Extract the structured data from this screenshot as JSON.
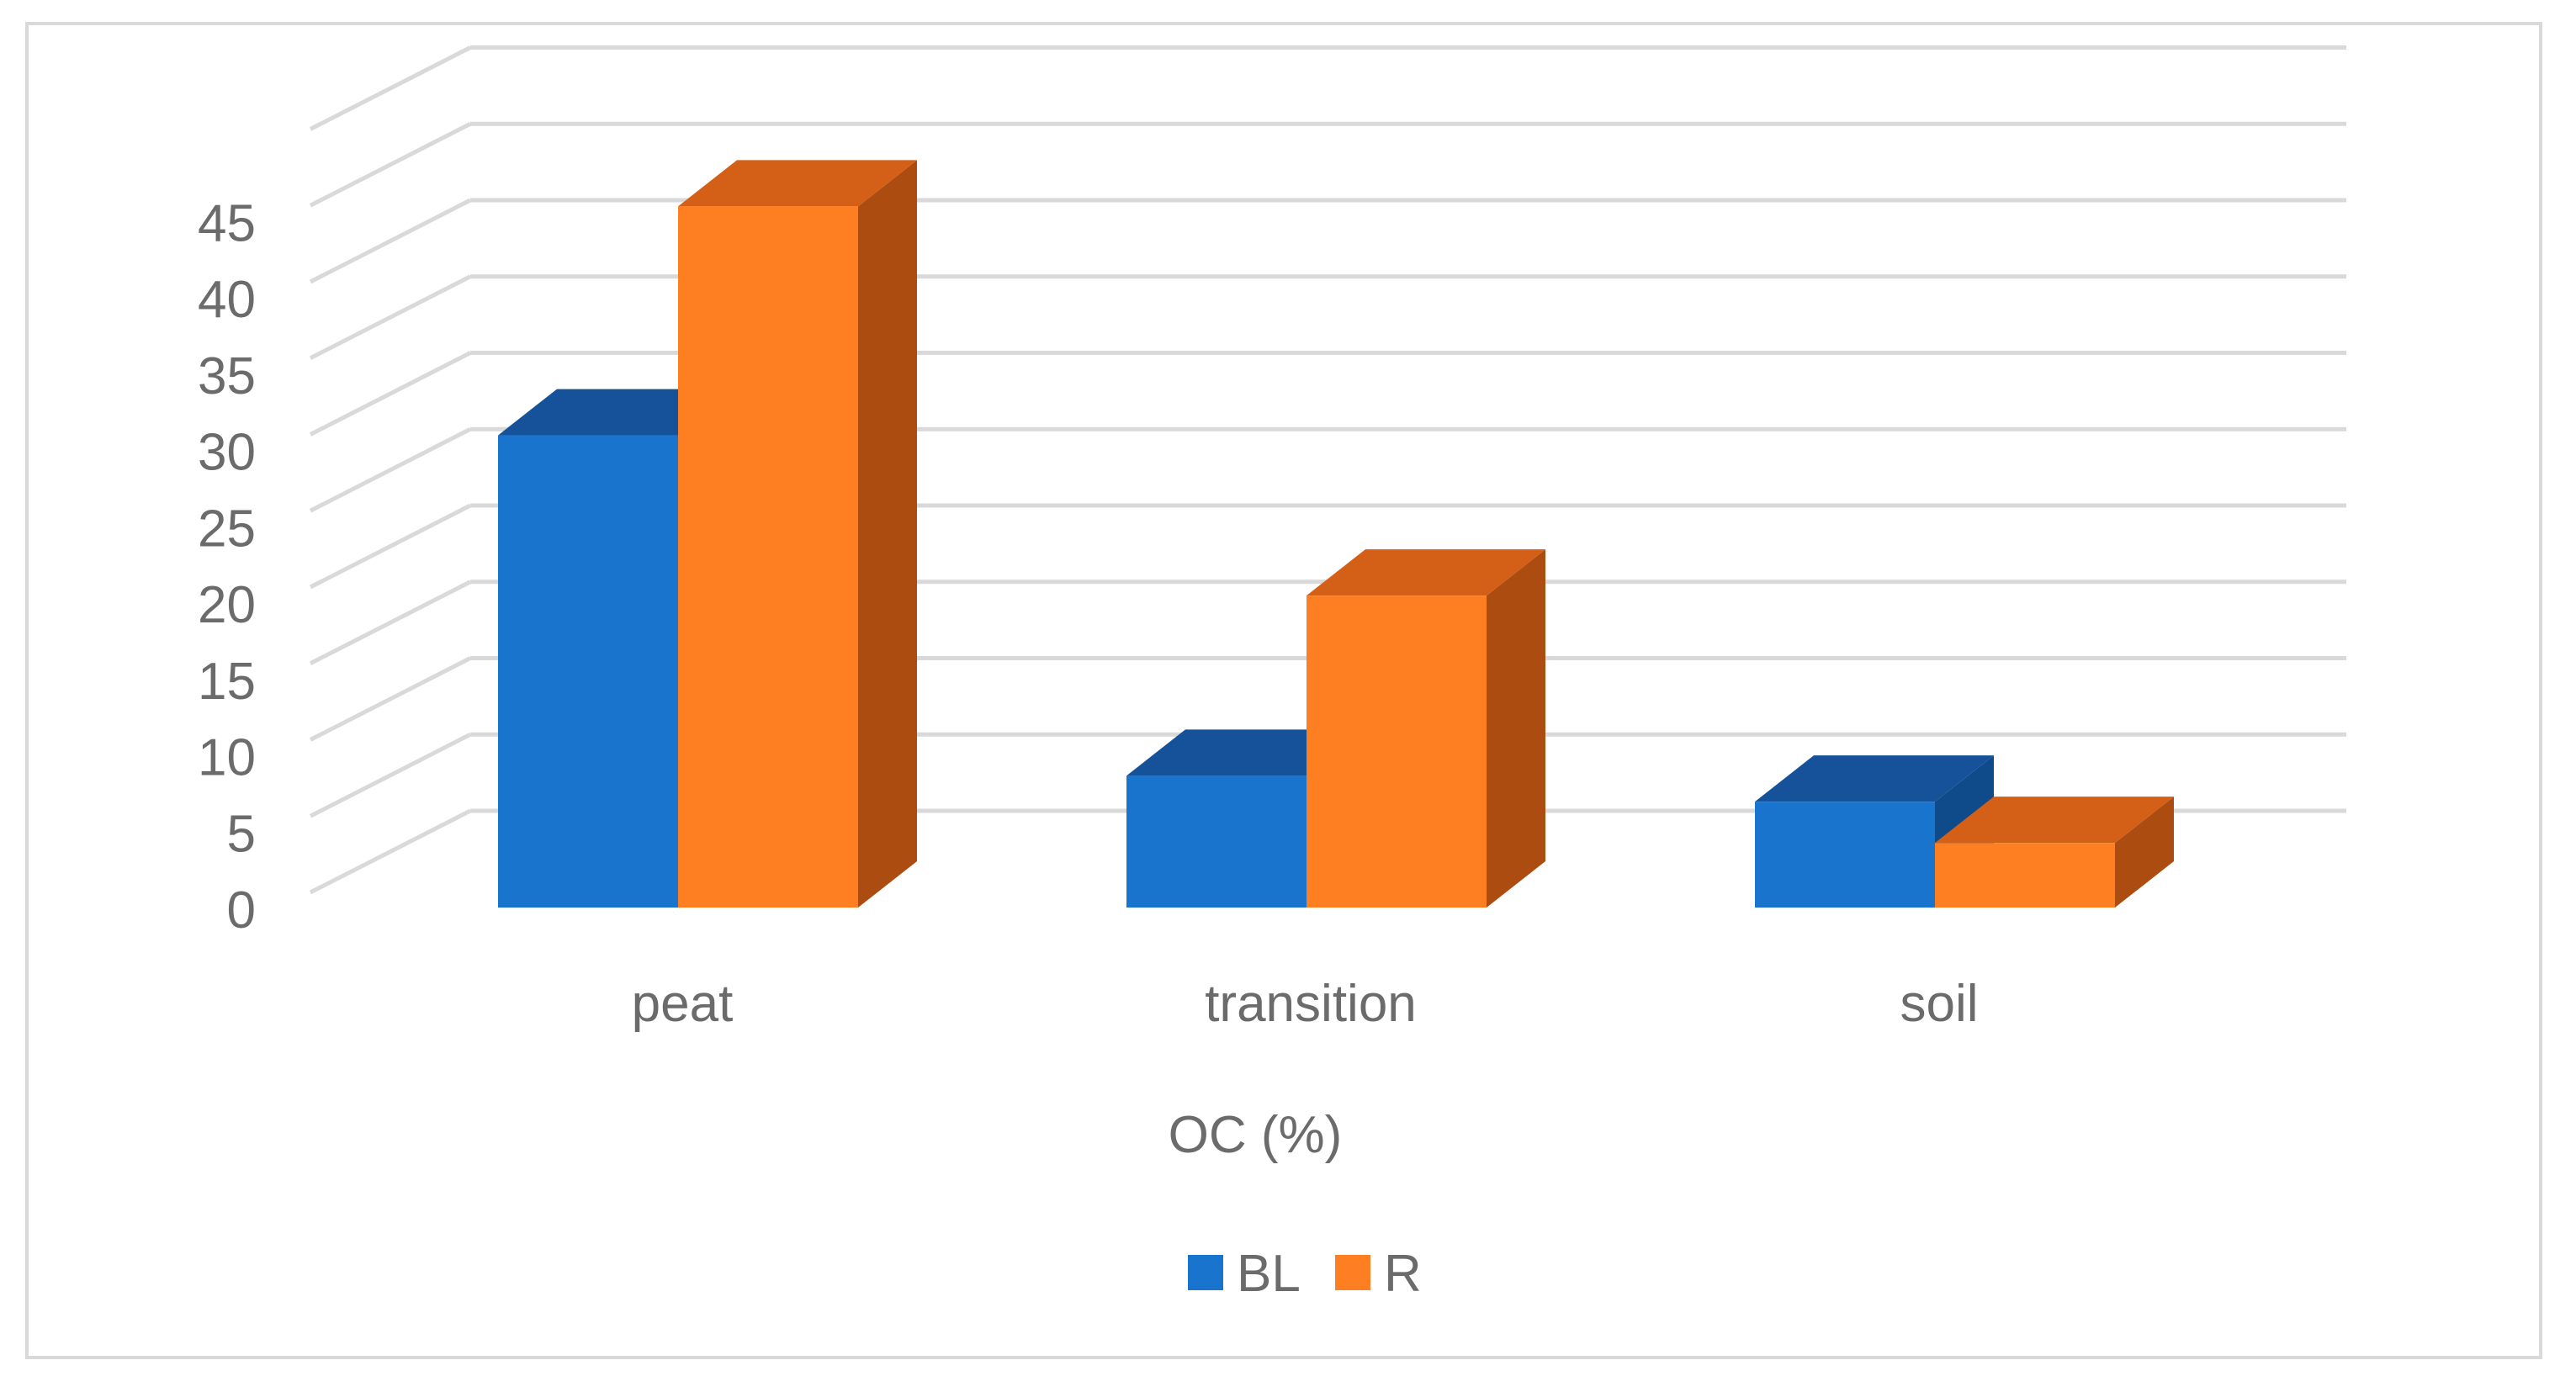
{
  "chart_data": {
    "type": "bar",
    "style": "3d-clustered-column",
    "categories": [
      "peat",
      "transition",
      "soil"
    ],
    "series": [
      {
        "name": "BL",
        "values": [
          29.5,
          7.2,
          5.5
        ],
        "color": "#1874cd",
        "top_color": "#15529a",
        "side_color": "#0f4a8a"
      },
      {
        "name": "R",
        "values": [
          44.5,
          19,
          2.8
        ],
        "color": "#fe7f21",
        "top_color": "#d45f16",
        "side_color": "#ad4c11"
      }
    ],
    "xlabel": "OC (%)",
    "ylabel": "",
    "ylim": [
      0,
      45
    ],
    "yticks": [
      0,
      5,
      10,
      15,
      20,
      25,
      30,
      35,
      40,
      45
    ],
    "grid": true,
    "legend": "bottom-center"
  }
}
